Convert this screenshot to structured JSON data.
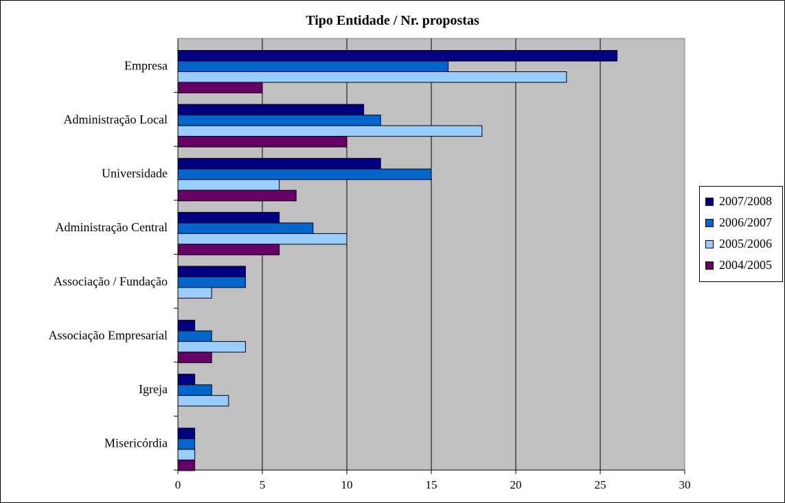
{
  "chart_data": {
    "type": "bar",
    "orientation": "horizontal",
    "title": "Tipo Entidade / Nr. propostas",
    "xlabel": "",
    "ylabel": "",
    "xlim": [
      0,
      30
    ],
    "x_ticks": [
      "0",
      "5",
      "10",
      "15",
      "20",
      "25",
      "30"
    ],
    "grid": true,
    "legend_position": "right",
    "categories": [
      "Empresa",
      "Administração Local",
      "Universidade",
      "Administração Central",
      "Associação / Fundação",
      "Associação Empresarial",
      "Igreja",
      "Misericórdia"
    ],
    "series": [
      {
        "name": "2007/2008",
        "color": "#000080",
        "values": [
          26,
          11,
          12,
          6,
          4,
          1,
          1,
          1
        ]
      },
      {
        "name": "2006/2007",
        "color": "#0066CC",
        "values": [
          16,
          12,
          15,
          8,
          4,
          2,
          2,
          1
        ]
      },
      {
        "name": "2005/2006",
        "color": "#99CCFF",
        "values": [
          23,
          18,
          6,
          10,
          2,
          4,
          3,
          1
        ]
      },
      {
        "name": "2004/2005",
        "color": "#660066",
        "values": [
          5,
          10,
          7,
          6,
          0,
          2,
          0,
          1
        ]
      }
    ],
    "plot_background": "#C0C0C0"
  }
}
